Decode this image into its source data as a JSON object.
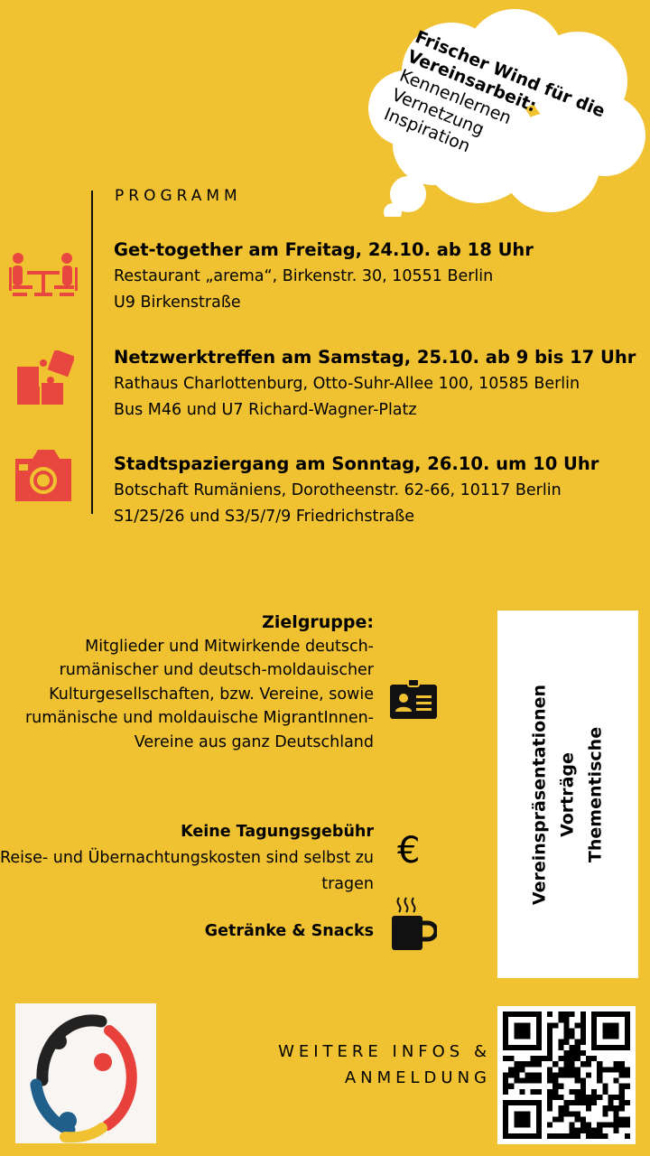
{
  "cloud": {
    "headline": "Frischer Wind für die Vereinsarbeit:",
    "items": [
      "Kennenlernen",
      "Vernetzung",
      "Inspiration"
    ]
  },
  "programm": {
    "label": "PROGRAMM",
    "events": [
      {
        "icon": "meeting-table-icon",
        "title": "Get-together am Freitag, 24.10. ab 18 Uhr",
        "line1": "Restaurant „arema“,  Birkenstr. 30, 10551 Berlin",
        "line2": "U9 Birkenstraße"
      },
      {
        "icon": "puzzle-icon",
        "title": "Netzwerktreffen am Samstag, 25.10. ab 9 bis 17 Uhr",
        "line1": "Rathaus Charlottenburg, Otto-Suhr-Allee 100, 10585 Berlin",
        "line2": "Bus M46 und U7 Richard-Wagner-Platz"
      },
      {
        "icon": "camera-icon",
        "title": "Stadtspaziergang am Sonntag, 26.10. um 10 Uhr",
        "line1": "Botschaft Rumäniens, Dorotheenstr. 62-66, 10117 Berlin",
        "line2": "S1/25/26 und S3/5/7/9  Friedrichstraße"
      }
    ]
  },
  "zielgruppe": {
    "title": "Zielgruppe:",
    "text": "Mitglieder und Mitwirkende deutsch-rumänischer und deutsch-moldauischer Kulturgesellschaften, bzw. Vereine, sowie rumänische und moldauische MigrantInnen-Vereine aus ganz Deutschland"
  },
  "fee": {
    "title": "Keine Tagungsgebühr",
    "text": "Reise- und Übernachtungskosten sind selbst zu tragen",
    "icon": "euro-icon"
  },
  "snacks": {
    "label": "Getränke & Snacks",
    "icon": "coffee-cup-icon"
  },
  "sidebox": {
    "items": [
      "Vereinspräsentationen",
      "Vorträge",
      "Thementische"
    ]
  },
  "footer": {
    "info_line1": "WEITERE INFOS &",
    "info_line2": "ANMELDUNG"
  },
  "colors": {
    "background": "#f0c232",
    "accent_red": "#e8473f"
  }
}
